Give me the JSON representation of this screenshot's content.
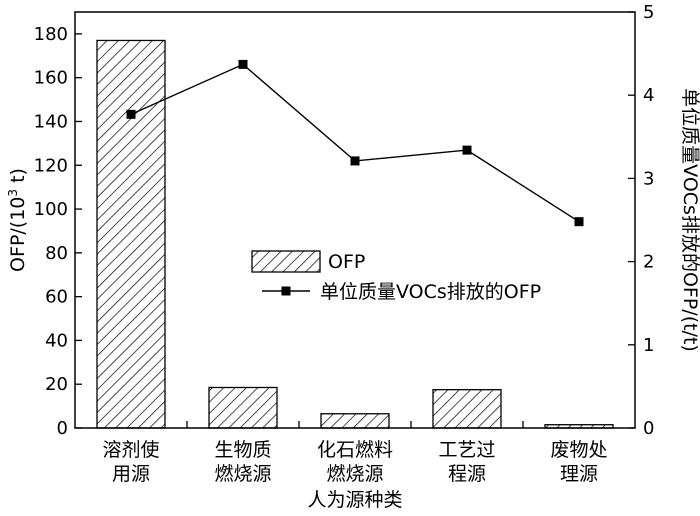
{
  "chart_data": {
    "type": "bar+line",
    "categories": [
      [
        "溶剂使",
        "用源"
      ],
      [
        "生物质",
        "燃烧源"
      ],
      [
        "化石燃料",
        "燃烧源"
      ],
      [
        "工艺过",
        "程源"
      ],
      [
        "废物处",
        "理源"
      ]
    ],
    "series": [
      {
        "name": "OFP",
        "type": "bar",
        "axis": "left",
        "values": [
          177,
          18.5,
          6.5,
          17.5,
          1.5
        ],
        "pattern": "diagonal-hatch"
      },
      {
        "name": "单位质量VOCs排放的OFP",
        "type": "line",
        "axis": "right",
        "values": [
          3.77,
          4.37,
          3.21,
          3.34,
          2.48
        ],
        "marker": "square"
      }
    ],
    "xlabel": "人为源种类",
    "ylabel_left": "OFP/(10³ t)",
    "ylabel_right": "单位质量VOCs排放的OFP/(t/t)",
    "ylim_left": [
      0,
      190
    ],
    "ylim_right": [
      0,
      5
    ],
    "yticks_left": [
      "0",
      "20",
      "40",
      "60",
      "80",
      "100",
      "120",
      "140",
      "160",
      "180"
    ],
    "yticks_right": [
      "0",
      "1",
      "2",
      "3",
      "4",
      "5"
    ],
    "legend": {
      "position": "center",
      "entries": [
        "OFP",
        "单位质量VOCs排放的OFP"
      ]
    },
    "grid": false,
    "colors": {
      "line": "#000000",
      "bar_stroke": "#000000",
      "background": "#ffffff"
    }
  }
}
